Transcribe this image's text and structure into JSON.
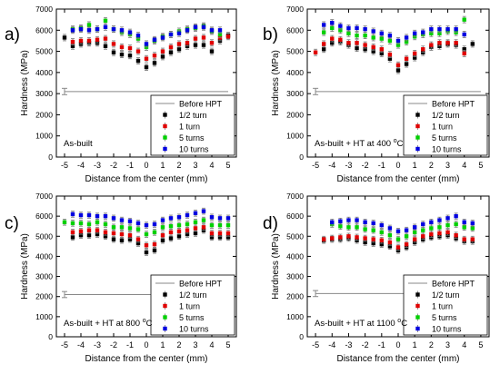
{
  "chart_data": [
    {
      "type": "scatter",
      "panel_label": "a)",
      "annotation": "As-built",
      "annotation_sup": "",
      "annotation_tail": "",
      "xlabel": "Distance from the center (mm)",
      "ylabel": "Hardness (MPa)",
      "xlim": [
        -5.5,
        5.5
      ],
      "ylim": [
        0,
        7000
      ],
      "x_ticks": [
        -5,
        -4,
        -3,
        -2,
        -1,
        0,
        1,
        2,
        3,
        4,
        5
      ],
      "y_ticks": [
        0,
        1000,
        2000,
        3000,
        4000,
        5000,
        6000,
        7000
      ],
      "legend_position": "bottom-right",
      "before_hpt": {
        "name": "Before HPT",
        "value": 3100,
        "error": 150,
        "x_from": -5,
        "x_to": 5
      },
      "series": [
        {
          "name": "1/2 turn",
          "color": "#000000",
          "x": [
            -5,
            -4.5,
            -4,
            -3.5,
            -3,
            -2.5,
            -2,
            -1.5,
            -1,
            -0.5,
            0,
            0.5,
            1,
            1.5,
            2,
            2.5,
            3,
            3.5,
            4,
            4.5,
            5
          ],
          "y": [
            5650,
            5250,
            5350,
            5400,
            5400,
            5250,
            4950,
            4850,
            4800,
            4550,
            4250,
            4450,
            4750,
            4950,
            5100,
            5250,
            5300,
            5300,
            5000,
            5500,
            5750
          ]
        },
        {
          "name": "1 turn",
          "color": "#e00000",
          "x": [
            -4.5,
            -4,
            -3.5,
            -3,
            -2.5,
            -2,
            -1.5,
            -1,
            -0.5,
            0,
            0.5,
            1,
            1.5,
            2,
            2.5,
            3,
            3.5,
            4,
            4.5,
            5
          ],
          "y": [
            5450,
            5500,
            5500,
            5550,
            5600,
            5350,
            5200,
            5150,
            5000,
            4650,
            4800,
            5000,
            5200,
            5350,
            5400,
            5600,
            5650,
            5400,
            5650,
            5700
          ]
        },
        {
          "name": "5 turns",
          "color": "#00d000",
          "x": [
            -4.5,
            -4,
            -3.5,
            -3,
            -2.5,
            -2,
            -1.5,
            -1,
            -0.5,
            0,
            0.5,
            1,
            1.5,
            2,
            2.5,
            3,
            3.5,
            4,
            4.5
          ],
          "y": [
            6050,
            6100,
            6250,
            6050,
            6450,
            6050,
            5900,
            5800,
            5600,
            5200,
            5500,
            5700,
            5800,
            5950,
            6050,
            6100,
            6200,
            5950,
            5800
          ]
        },
        {
          "name": "10 turns",
          "color": "#0000e0",
          "x": [
            -4.5,
            -4,
            -3.5,
            -3,
            -2.5,
            -2,
            -1.5,
            -1,
            -0.5,
            0,
            0.5,
            1,
            1.5,
            2,
            2.5,
            3,
            3.5,
            4,
            4.5
          ],
          "y": [
            6000,
            6050,
            6000,
            6050,
            6150,
            6050,
            6000,
            5900,
            5750,
            5350,
            5550,
            5650,
            5800,
            5850,
            6000,
            6150,
            6150,
            6000,
            6000
          ]
        }
      ]
    },
    {
      "type": "scatter",
      "panel_label": "b)",
      "annotation": "As-built + HT at 400 ",
      "annotation_sup": "o",
      "annotation_tail": "C",
      "xlabel": "Distance from the center (mm)",
      "ylabel": "Hardness (MPa)",
      "xlim": [
        -5.5,
        5.5
      ],
      "ylim": [
        0,
        7000
      ],
      "x_ticks": [
        -5,
        -4,
        -3,
        -2,
        -1,
        0,
        1,
        2,
        3,
        4,
        5
      ],
      "y_ticks": [
        0,
        1000,
        2000,
        3000,
        4000,
        5000,
        6000,
        7000
      ],
      "legend_position": "bottom-right",
      "before_hpt": {
        "name": "Before HPT",
        "value": 3100,
        "error": 150,
        "x_from": -5,
        "x_to": 5
      },
      "series": [
        {
          "name": "1/2 turn",
          "color": "#000000",
          "x": [
            -4.5,
            -4,
            -3.5,
            -3,
            -2.5,
            -2,
            -1.5,
            -1,
            -0.5,
            0,
            0.5,
            1,
            1.5,
            2,
            2.5,
            3,
            3.5,
            4,
            4.5
          ],
          "y": [
            5100,
            5400,
            5450,
            5300,
            5150,
            5100,
            5000,
            4900,
            4650,
            4100,
            4400,
            4700,
            4950,
            5200,
            5250,
            5350,
            5300,
            5100,
            5350
          ]
        },
        {
          "name": "1 turn",
          "color": "#e00000",
          "x": [
            -5,
            -4.5,
            -4,
            -3.5,
            -3,
            -2.5,
            -2,
            -1.5,
            -1,
            -0.5,
            0,
            0.5,
            1,
            1.5,
            2,
            2.5,
            3,
            3.5,
            4
          ],
          "y": [
            4950,
            5350,
            5600,
            5550,
            5400,
            5400,
            5300,
            5200,
            5100,
            4850,
            4350,
            4650,
            4900,
            5100,
            5300,
            5400,
            5400,
            5400,
            4900
          ]
        },
        {
          "name": "5 turns",
          "color": "#00d000",
          "x": [
            -4.5,
            -4,
            -3.5,
            -3,
            -2.5,
            -2,
            -1.5,
            -1,
            -0.5,
            0,
            0.5,
            1,
            1.5,
            2,
            2.5,
            3,
            3.5,
            4
          ],
          "y": [
            5900,
            6100,
            6000,
            5850,
            5750,
            5750,
            5650,
            5600,
            5500,
            5300,
            5450,
            5700,
            5800,
            5850,
            5850,
            5950,
            5900,
            6500
          ]
        },
        {
          "name": "10 turns",
          "color": "#0000e0",
          "x": [
            -4.5,
            -4,
            -3.5,
            -3,
            -2.5,
            -2,
            -1.5,
            -1,
            -0.5,
            0,
            0.5,
            1,
            1.5,
            2,
            2.5,
            3,
            3.5,
            4
          ],
          "y": [
            6250,
            6350,
            6200,
            6100,
            6100,
            6050,
            5950,
            5850,
            5750,
            5500,
            5650,
            5850,
            5900,
            6050,
            6050,
            6050,
            6050,
            5800
          ]
        }
      ]
    },
    {
      "type": "scatter",
      "panel_label": "c)",
      "annotation": "As-built + HT at 800 ",
      "annotation_sup": "o",
      "annotation_tail": "C",
      "xlabel": "Distance from the center (mm)",
      "ylabel": "Hardness (MPa)",
      "xlim": [
        -5.5,
        5.5
      ],
      "ylim": [
        0,
        7000
      ],
      "x_ticks": [
        -5,
        -4,
        -3,
        -2,
        -1,
        0,
        1,
        2,
        3,
        4,
        5
      ],
      "y_ticks": [
        0,
        1000,
        2000,
        3000,
        4000,
        5000,
        6000,
        7000
      ],
      "legend_position": "bottom-right",
      "before_hpt": {
        "name": "Before HPT",
        "value": 2100,
        "error": 150,
        "x_from": -5,
        "x_to": 5
      },
      "series": [
        {
          "name": "1/2 turn",
          "color": "#000000",
          "x": [
            -4.5,
            -4,
            -3.5,
            -3,
            -2.5,
            -2,
            -1.5,
            -1,
            -0.5,
            0,
            0.5,
            1,
            1.5,
            2,
            2.5,
            3,
            3.5,
            4,
            4.5,
            5
          ],
          "y": [
            4950,
            5050,
            5050,
            5100,
            5000,
            4850,
            4800,
            4850,
            4650,
            4200,
            4300,
            4800,
            4900,
            5000,
            5100,
            5150,
            5300,
            4950,
            4950,
            4950
          ]
        },
        {
          "name": "1 turn",
          "color": "#e00000",
          "x": [
            -4.5,
            -4,
            -3.5,
            -3,
            -2.5,
            -2,
            -1.5,
            -1,
            -0.5,
            0,
            0.5,
            1,
            1.5,
            2,
            2.5,
            3,
            3.5,
            4,
            4.5,
            5
          ],
          "y": [
            5200,
            5250,
            5300,
            5300,
            5200,
            5150,
            5100,
            5050,
            4850,
            4550,
            4600,
            5050,
            5200,
            5250,
            5300,
            5400,
            5450,
            5150,
            5150,
            5150
          ]
        },
        {
          "name": "5 turns",
          "color": "#00d000",
          "x": [
            -5,
            -4.5,
            -4,
            -3.5,
            -3,
            -2.5,
            -2,
            -1.5,
            -1,
            -0.5,
            0,
            0.5,
            1,
            1.5,
            2,
            2.5,
            3,
            3.5,
            4,
            4.5,
            5
          ],
          "y": [
            5700,
            5650,
            5650,
            5600,
            5700,
            5600,
            5450,
            5450,
            5400,
            5350,
            5100,
            5200,
            5450,
            5500,
            5550,
            5600,
            5700,
            5800,
            5550,
            5550,
            5550
          ]
        },
        {
          "name": "10 turns",
          "color": "#0000e0",
          "x": [
            -4.5,
            -4,
            -3.5,
            -3,
            -2.5,
            -2,
            -1.5,
            -1,
            -0.5,
            0,
            0.5,
            1,
            1.5,
            2,
            2.5,
            3,
            3.5,
            4,
            4.5,
            5
          ],
          "y": [
            6100,
            6050,
            6050,
            6000,
            6000,
            5900,
            5800,
            5750,
            5650,
            5550,
            5600,
            5800,
            5900,
            5950,
            6050,
            6150,
            6250,
            5950,
            5900,
            5900
          ]
        }
      ]
    },
    {
      "type": "scatter",
      "panel_label": "d)",
      "annotation": "As-built + HT at 1100 ",
      "annotation_sup": "o",
      "annotation_tail": "C",
      "xlabel": "Distance from the center (mm)",
      "ylabel": "Hardness (MPa)",
      "xlim": [
        -5.5,
        5.5
      ],
      "ylim": [
        0,
        7000
      ],
      "x_ticks": [
        -5,
        -4,
        -3,
        -2,
        -1,
        0,
        1,
        2,
        3,
        4,
        5
      ],
      "y_ticks": [
        0,
        1000,
        2000,
        3000,
        4000,
        5000,
        6000,
        7000
      ],
      "legend_position": "bottom-right",
      "before_hpt": {
        "name": "Before HPT",
        "value": 2150,
        "error": 150,
        "x_from": -5,
        "x_to": 5
      },
      "series": [
        {
          "name": "1/2 turn",
          "color": "#000000",
          "x": [
            -4.5,
            -4,
            -3.5,
            -3,
            -2.5,
            -2,
            -1.5,
            -1,
            -0.5,
            0,
            0.5,
            1,
            1.5,
            2,
            2.5,
            3,
            3.5,
            4,
            4.5
          ],
          "y": [
            4800,
            4850,
            4850,
            4900,
            4800,
            4700,
            4650,
            4600,
            4500,
            4300,
            4450,
            4700,
            4850,
            4950,
            5000,
            5050,
            4900,
            4750,
            4750
          ]
        },
        {
          "name": "1 turn",
          "color": "#e00000",
          "x": [
            -4.5,
            -4,
            -3.5,
            -3,
            -2.5,
            -2,
            -1.5,
            -1,
            -0.5,
            0,
            0.5,
            1,
            1.5,
            2,
            2.5,
            3,
            3.5,
            4,
            4.5
          ],
          "y": [
            4850,
            4900,
            4950,
            5000,
            4950,
            4900,
            4850,
            4800,
            4700,
            4450,
            4600,
            4850,
            5000,
            5100,
            5150,
            5200,
            5050,
            4850,
            4850
          ]
        },
        {
          "name": "5 turns",
          "color": "#00d000",
          "x": [
            -4,
            -3.5,
            -3,
            -2.5,
            -2,
            -1.5,
            -1,
            -0.5,
            0,
            0.5,
            1,
            1.5,
            2,
            2.5,
            3,
            3.5,
            4,
            4.5
          ],
          "y": [
            5600,
            5500,
            5450,
            5450,
            5350,
            5300,
            5200,
            5050,
            4850,
            5000,
            5200,
            5300,
            5400,
            5450,
            5550,
            5600,
            5450,
            5400
          ]
        },
        {
          "name": "10 turns",
          "color": "#0000e0",
          "x": [
            -4,
            -3.5,
            -3,
            -2.5,
            -2,
            -1.5,
            -1,
            -0.5,
            0,
            0.5,
            1,
            1.5,
            2,
            2.5,
            3,
            3.5,
            4,
            4.5
          ],
          "y": [
            5700,
            5750,
            5800,
            5800,
            5700,
            5650,
            5550,
            5400,
            5250,
            5300,
            5450,
            5600,
            5700,
            5800,
            5900,
            6000,
            5700,
            5650
          ]
        }
      ]
    }
  ]
}
